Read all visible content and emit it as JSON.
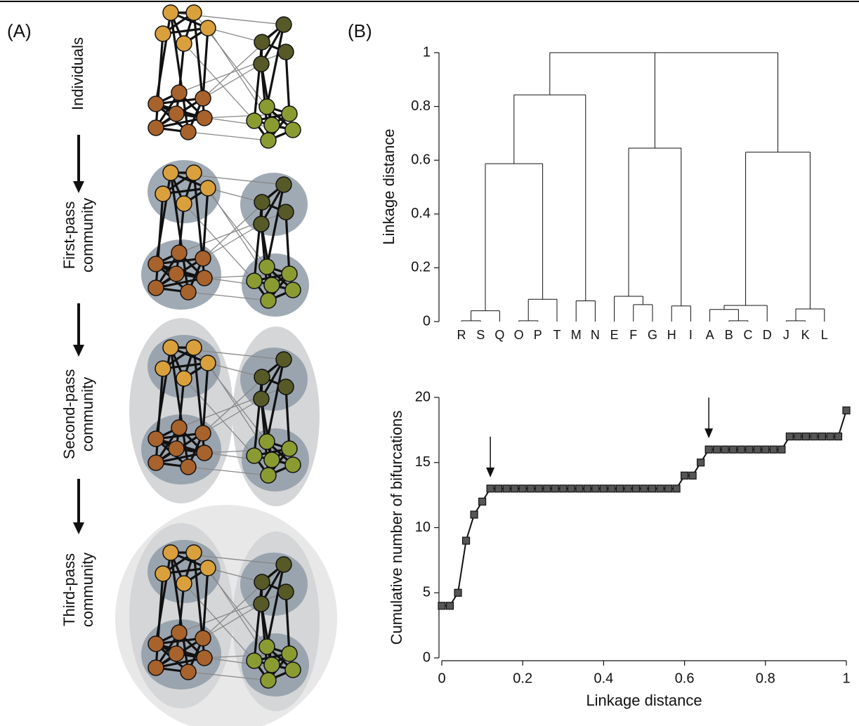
{
  "panel_a": {
    "label": "(A)",
    "stages": [
      [
        "Individuals"
      ],
      [
        "First-pass",
        "community"
      ],
      [
        "Second-pass",
        "community"
      ],
      [
        "Third-pass",
        "community"
      ]
    ]
  },
  "panel_b_label": "(B)",
  "chart_data": [
    {
      "type": "dendrogram",
      "y_label": "Linkage distance",
      "ylim": [
        0,
        1
      ],
      "yticks": [
        0,
        0.2,
        0.4,
        0.6,
        0.8,
        1
      ],
      "tree": {
        "height": 1,
        "children": [
          {
            "height": 1,
            "children": [
              {
                "height": 0.843,
                "children": [
                  {
                    "height": 0.587,
                    "children": [
                      {
                        "height": 0.04,
                        "children": [
                          {
                            "height": 0.003,
                            "children": [
                              "R",
                              "S"
                            ]
                          },
                          "Q"
                        ]
                      },
                      {
                        "height": 0.083,
                        "children": [
                          {
                            "height": 0.003,
                            "children": [
                              "O",
                              "P"
                            ]
                          },
                          "T"
                        ]
                      }
                    ]
                  },
                  {
                    "height": 0.077,
                    "children": [
                      "M",
                      "N"
                    ]
                  }
                ]
              },
              {
                "height": 0.645,
                "children": [
                  {
                    "height": 0.094,
                    "children": [
                      "E",
                      {
                        "height": 0.063,
                        "children": [
                          "F",
                          "G"
                        ]
                      }
                    ]
                  },
                  {
                    "height": 0.058,
                    "children": [
                      "H",
                      "I"
                    ]
                  }
                ]
              }
            ]
          },
          {
            "height": 0.63,
            "children": [
              {
                "height": 0.06,
                "children": [
                  {
                    "height": 0.045,
                    "children": [
                      "A",
                      {
                        "height": 0.003,
                        "children": [
                          "B",
                          "C"
                        ]
                      }
                    ]
                  },
                  "D"
                ]
              },
              {
                "height": 0.047,
                "children": [
                  {
                    "height": 0.003,
                    "children": [
                      "J",
                      "K"
                    ]
                  },
                  "L"
                ]
              }
            ]
          }
        ]
      }
    },
    {
      "type": "line",
      "x_label": "Linkage distance",
      "y_label": "Cumulative number of bifurcations",
      "xlim": [
        0,
        1
      ],
      "ylim": [
        0,
        20
      ],
      "xticks": [
        0,
        0.2,
        0.4,
        0.6,
        0.8,
        1
      ],
      "yticks": [
        0,
        5,
        10,
        15,
        20
      ],
      "color": "#555555",
      "x": [
        0,
        0.02,
        0.04,
        0.06,
        0.08,
        0.1,
        0.12,
        0.14,
        0.16,
        0.18,
        0.2,
        0.22,
        0.24,
        0.26,
        0.28,
        0.3,
        0.32,
        0.34,
        0.36,
        0.38,
        0.4,
        0.42,
        0.44,
        0.46,
        0.48,
        0.5,
        0.52,
        0.54,
        0.56,
        0.58,
        0.6,
        0.62,
        0.64,
        0.66,
        0.68,
        0.7,
        0.72,
        0.74,
        0.76,
        0.78,
        0.8,
        0.82,
        0.84,
        0.86,
        0.88,
        0.9,
        0.92,
        0.94,
        0.96,
        0.98,
        1
      ],
      "values": [
        4,
        4,
        5,
        9,
        11,
        12,
        13,
        13,
        13,
        13,
        13,
        13,
        13,
        13,
        13,
        13,
        13,
        13,
        13,
        13,
        13,
        13,
        13,
        13,
        13,
        13,
        13,
        13,
        13,
        13,
        14,
        14,
        15,
        16,
        16,
        16,
        16,
        16,
        16,
        16,
        16,
        16,
        16,
        17,
        17,
        17,
        17,
        17,
        17,
        17,
        19
      ],
      "arrow_x": [
        0.12,
        0.66
      ]
    }
  ]
}
